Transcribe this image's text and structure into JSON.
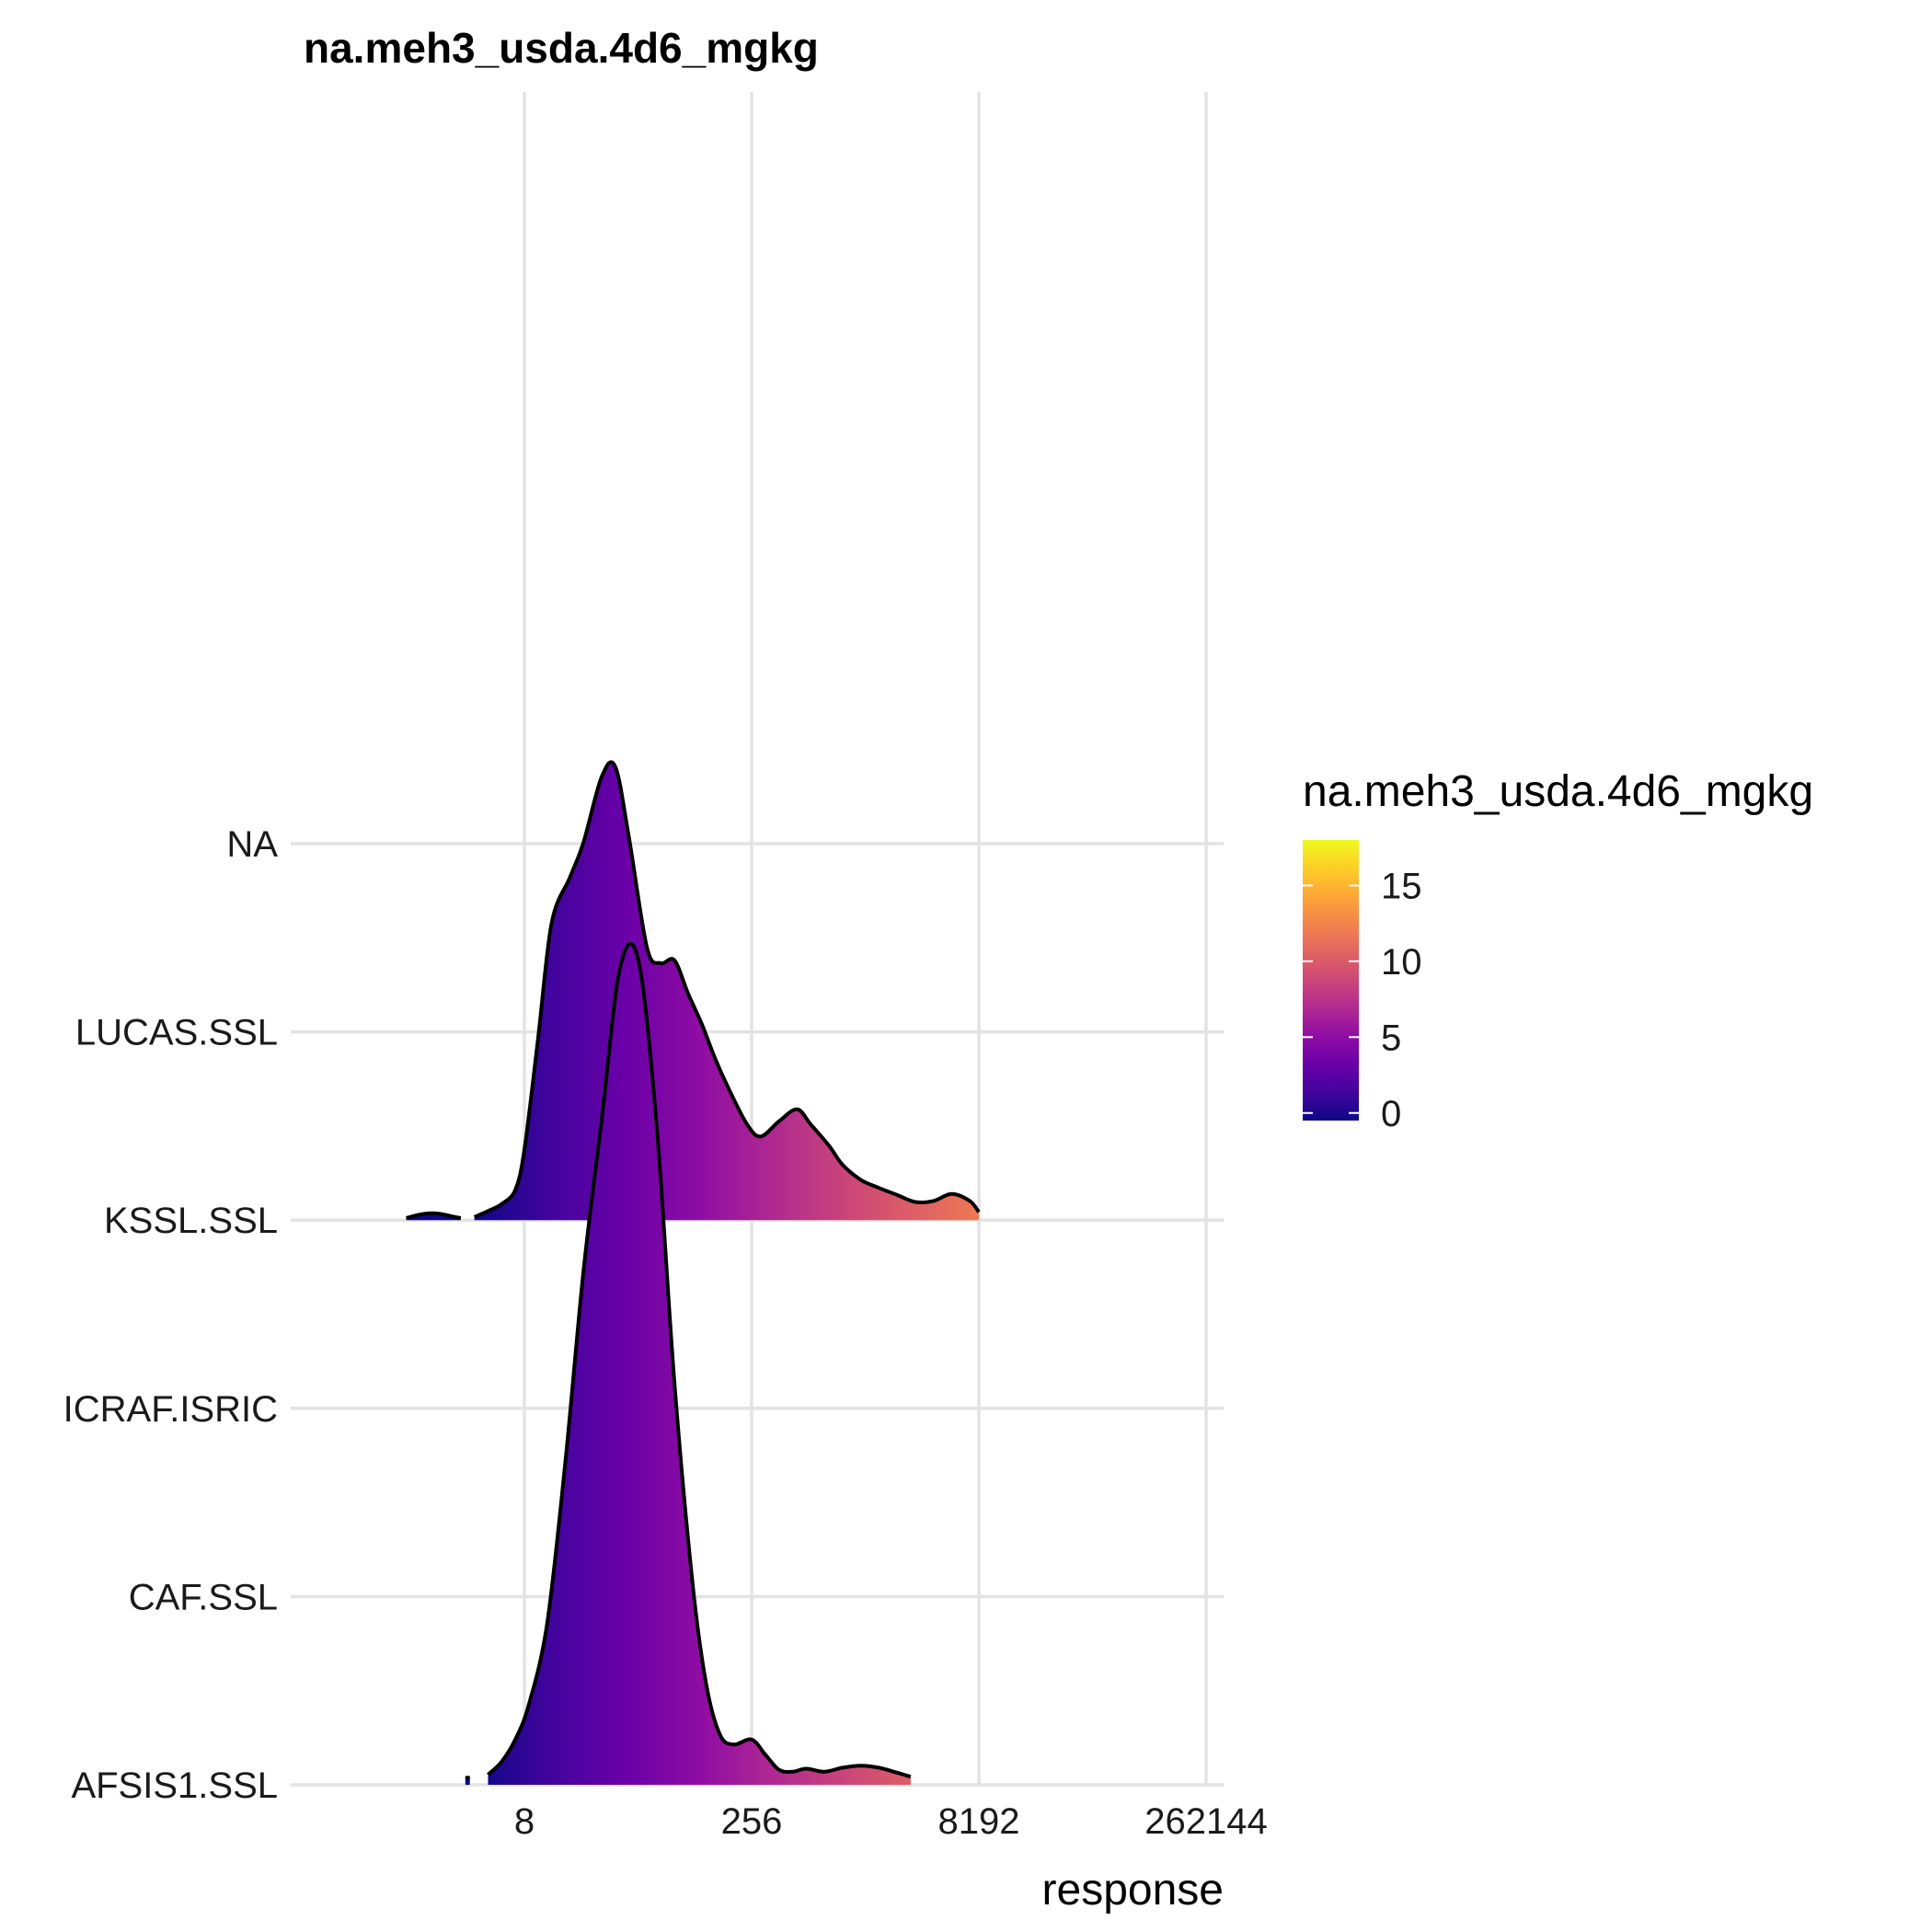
{
  "chart_data": {
    "type": "ridgeline-density",
    "title": "na.meh3_usda.4d6_mgkg",
    "xlabel": "response",
    "ylabel": "",
    "x_scale": "log2",
    "x_ticks": [
      8,
      256,
      8192,
      262144
    ],
    "x_tick_labels": [
      "8",
      "256",
      "8192",
      "262144"
    ],
    "xlim": [
      0.0625,
      524288
    ],
    "categories": [
      "AFSIS1.SSL",
      "CAF.SSL",
      "ICRAF.ISRIC",
      "KSSL.SSL",
      "LUCAS.SSL",
      "NA"
    ],
    "grid": true,
    "legend": {
      "title": "na.meh3_usda.4d6_mgkg",
      "placement": "right",
      "type": "colorbar",
      "ticks": [
        0,
        5,
        10,
        15
      ],
      "range": [
        -0.5,
        18
      ],
      "colormap": "plasma"
    },
    "series": [
      {
        "name": "KSSL.SSL",
        "baseline_category": "KSSL.SSL",
        "log2_x": [
          0.4,
          0.6,
          0.8,
          1.0,
          1.2,
          1.4,
          1.6
        ],
        "height": [
          0.2,
          0.45,
          0.62,
          0.68,
          0.58,
          0.38,
          0.2
        ],
        "log2_x_b": [
          1.9,
          2.2,
          2.5,
          2.8,
          3.0,
          3.3,
          3.6,
          4.0,
          4.3,
          4.7,
          5.0,
          5.3,
          5.7,
          6.0,
          6.3,
          6.6,
          6.9,
          7.2,
          7.5,
          7.9,
          8.2,
          8.6,
          9.0,
          9.3,
          9.7,
          10.0,
          10.4,
          10.8,
          11.2,
          11.6,
          12.0,
          12.4,
          12.8,
          13.0
        ],
        "height_b": [
          0.3,
          0.9,
          1.6,
          3.0,
          7.0,
          18.0,
          29.5,
          34.0,
          37.5,
          44.0,
          45.0,
          38.0,
          27.0,
          25.5,
          25.8,
          22.5,
          19.5,
          16.0,
          13.0,
          9.5,
          8.3,
          9.8,
          11.0,
          9.5,
          7.4,
          5.5,
          4.0,
          3.2,
          2.5,
          1.8,
          1.9,
          2.6,
          1.9,
          0.8
        ]
      },
      {
        "name": "AFSIS1.SSL",
        "baseline_category": "AFSIS1.SSL",
        "log2_x": [
          1.7,
          1.8
        ],
        "height": [
          0.7,
          0.7
        ],
        "log2_x_b": [
          2.2,
          2.5,
          2.8,
          3.1,
          3.5,
          3.9,
          4.3,
          4.7,
          5.1,
          5.5,
          5.9,
          6.3,
          6.7,
          7.0,
          7.3,
          7.6,
          8.0,
          8.3,
          8.6,
          8.9,
          9.2,
          9.6,
          10.0,
          10.4,
          10.8,
          11.2,
          11.5
        ],
        "height_b": [
          1.0,
          2.3,
          4.5,
          8.0,
          16.0,
          32.0,
          51.0,
          66.0,
          81.0,
          82.0,
          66.0,
          40.0,
          20.0,
          10.0,
          5.0,
          4.0,
          4.5,
          3.0,
          1.5,
          1.3,
          1.6,
          1.3,
          1.7,
          1.9,
          1.7,
          1.2,
          0.8
        ]
      }
    ]
  }
}
